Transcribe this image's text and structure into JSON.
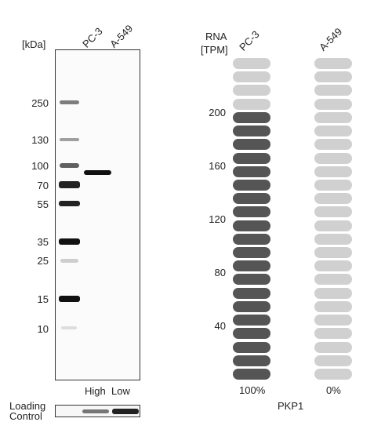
{
  "western_blot": {
    "unit_label": "[kDa]",
    "lanes": [
      "PC-3",
      "A-549"
    ],
    "markers": [
      "250",
      "130",
      "100",
      "70",
      "55",
      "35",
      "25",
      "15",
      "10"
    ],
    "lane_levels": [
      "High",
      "Low"
    ],
    "loading_label_line1": "Loading",
    "loading_label_line2": "Control"
  },
  "rna": {
    "title_line1": "RNA",
    "title_line2": "[TPM]",
    "columns": [
      "PC-3",
      "A-549"
    ],
    "ticks": [
      "200",
      "160",
      "120",
      "80",
      "40"
    ],
    "column_values": [
      "100%",
      "0%"
    ],
    "gene": "PKP1",
    "pills_total": 24,
    "pc3_filled": 20,
    "a549_filled": 0,
    "color_filled": "#555555",
    "color_empty": "#d0d0d0"
  }
}
